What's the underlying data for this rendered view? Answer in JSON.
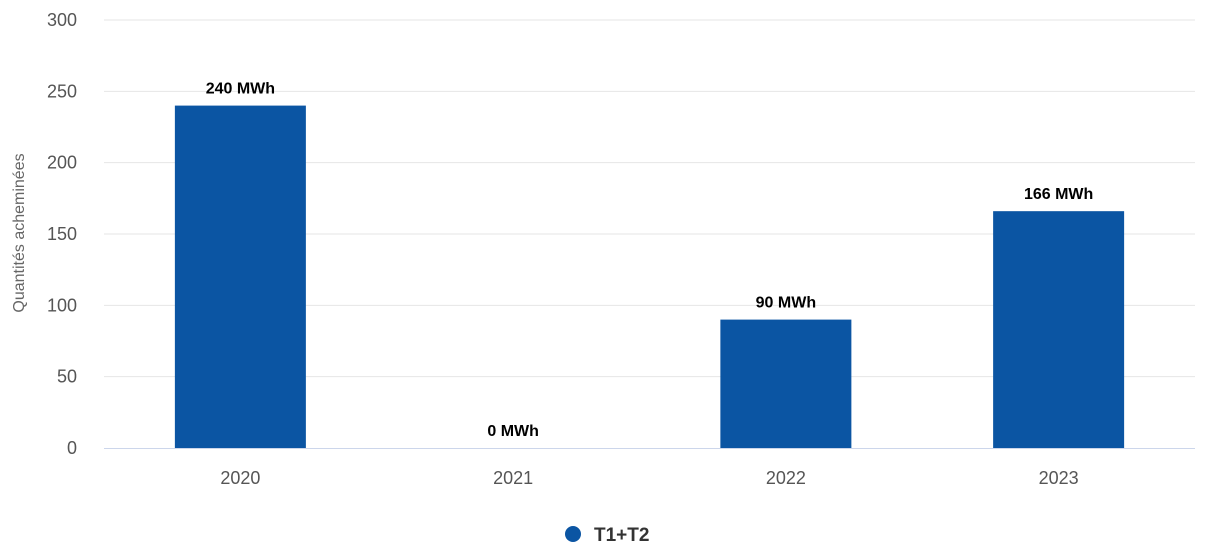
{
  "chart_data": {
    "type": "bar",
    "title": "",
    "xlabel": "",
    "ylabel": "Quantités acheminées",
    "categories": [
      "2020",
      "2021",
      "2022",
      "2023"
    ],
    "series": [
      {
        "name": "T1+T2",
        "values": [
          240,
          0,
          90,
          166
        ],
        "data_labels": [
          "240 MWh",
          "0 MWh",
          "90 MWh",
          "166 MWh"
        ],
        "color": "#0b55a3"
      }
    ],
    "yticks": [
      0,
      50,
      100,
      150,
      200,
      250,
      300
    ],
    "ylim": [
      0,
      300
    ],
    "grid": true,
    "legend": "bottom-center",
    "colors": {
      "bar": "#0b55a3",
      "grid": "#e6e6e6",
      "axis": "#ccd6eb"
    }
  }
}
